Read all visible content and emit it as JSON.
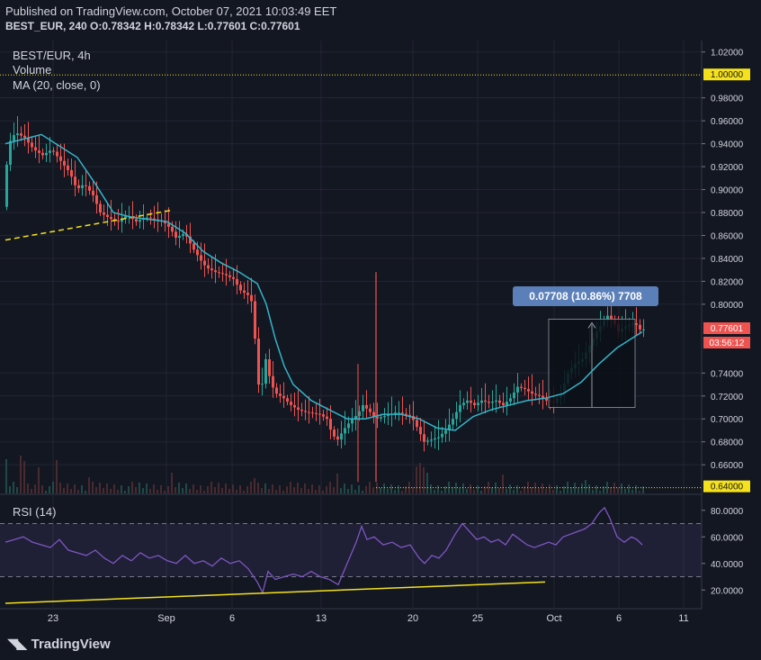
{
  "published": "Published on TradingView.com, October 07, 2021 10:03:49 EET",
  "ohlc_line": "BEST_EUR, 240 O:0.78342 H:0.78342 L:0.77601 C:0.77601",
  "legend": {
    "symbol": "BEST/EUR, 4h",
    "volume": "Volume",
    "ma": "MA (20, close, 0)",
    "rsi": "RSI (14)"
  },
  "measure": {
    "label": "0.07708 (10.86%) 7708"
  },
  "price_tags": {
    "hline_top": "1.00000",
    "hline_bottom": "0.64000",
    "last_price": "0.77601",
    "countdown": "03:56:12"
  },
  "brand": "TradingView",
  "colors": {
    "background": "#131722",
    "up": "#26a69a",
    "down": "#ef5350",
    "ma": "#33b5c9",
    "rsi": "#7e57c2",
    "hline": "#f5e11c",
    "measure": "#5b7fb8"
  },
  "chart_data": {
    "type": "candlestick",
    "y_axis": {
      "range": [
        0.635,
        1.03
      ],
      "ticks": [
        "1.02000",
        "0.98000",
        "0.96000",
        "0.94000",
        "0.92000",
        "0.90000",
        "0.88000",
        "0.86000",
        "0.84000",
        "0.82000",
        "0.80000",
        "0.74000",
        "0.72000",
        "0.70000",
        "0.68000",
        "0.66000"
      ]
    },
    "x_axis": {
      "ticks": [
        "23",
        "Sep",
        "6",
        "13",
        "20",
        "25",
        "Oct",
        "6",
        "11"
      ]
    },
    "rsi_axis": {
      "range": [
        10,
        90
      ],
      "ticks": [
        "80.0000",
        "60.0000",
        "40.0000",
        "20.0000"
      ],
      "bands": [
        70,
        30
      ]
    },
    "price_path": [
      [
        0,
        0.885
      ],
      [
        6,
        0.94
      ],
      [
        14,
        0.95
      ],
      [
        24,
        0.945
      ],
      [
        34,
        0.935
      ],
      [
        44,
        0.93
      ],
      [
        54,
        0.935
      ],
      [
        64,
        0.925
      ],
      [
        74,
        0.915
      ],
      [
        82,
        0.9
      ],
      [
        90,
        0.905
      ],
      [
        100,
        0.895
      ],
      [
        108,
        0.88
      ],
      [
        118,
        0.875
      ],
      [
        128,
        0.872
      ],
      [
        138,
        0.878
      ],
      [
        148,
        0.872
      ],
      [
        158,
        0.876
      ],
      [
        168,
        0.874
      ],
      [
        178,
        0.872
      ],
      [
        186,
        0.866
      ],
      [
        192,
        0.858
      ],
      [
        202,
        0.862
      ],
      [
        210,
        0.85
      ],
      [
        220,
        0.838
      ],
      [
        226,
        0.832
      ],
      [
        236,
        0.828
      ],
      [
        246,
        0.826
      ],
      [
        256,
        0.822
      ],
      [
        264,
        0.812
      ],
      [
        272,
        0.808
      ],
      [
        278,
        0.8
      ],
      [
        282,
        0.74
      ],
      [
        286,
        0.72
      ],
      [
        292,
        0.752
      ],
      [
        298,
        0.73
      ],
      [
        304,
        0.722
      ],
      [
        312,
        0.718
      ],
      [
        320,
        0.712
      ],
      [
        328,
        0.708
      ],
      [
        336,
        0.706
      ],
      [
        344,
        0.705
      ],
      [
        352,
        0.704
      ],
      [
        360,
        0.7
      ],
      [
        366,
        0.686
      ],
      [
        372,
        0.682
      ],
      [
        378,
        0.69
      ],
      [
        386,
        0.698
      ],
      [
        394,
        0.704
      ],
      [
        400,
        0.712
      ],
      [
        408,
        0.706
      ],
      [
        414,
        0.7
      ],
      [
        422,
        0.702
      ],
      [
        430,
        0.704
      ],
      [
        438,
        0.706
      ],
      [
        446,
        0.704
      ],
      [
        454,
        0.702
      ],
      [
        462,
        0.69
      ],
      [
        468,
        0.68
      ],
      [
        476,
        0.682
      ],
      [
        484,
        0.684
      ],
      [
        492,
        0.69
      ],
      [
        500,
        0.7
      ],
      [
        508,
        0.712
      ],
      [
        516,
        0.716
      ],
      [
        524,
        0.712
      ],
      [
        532,
        0.716
      ],
      [
        540,
        0.714
      ],
      [
        548,
        0.716
      ],
      [
        556,
        0.712
      ],
      [
        564,
        0.718
      ],
      [
        572,
        0.728
      ],
      [
        580,
        0.726
      ],
      [
        588,
        0.722
      ],
      [
        596,
        0.72
      ],
      [
        604,
        0.716
      ],
      [
        612,
        0.714
      ],
      [
        620,
        0.722
      ],
      [
        628,
        0.74
      ],
      [
        636,
        0.748
      ],
      [
        644,
        0.752
      ],
      [
        652,
        0.764
      ],
      [
        660,
        0.776
      ],
      [
        666,
        0.784
      ],
      [
        672,
        0.79
      ],
      [
        678,
        0.786
      ],
      [
        684,
        0.776
      ],
      [
        690,
        0.78
      ],
      [
        696,
        0.782
      ],
      [
        702,
        0.784
      ],
      [
        708,
        0.778
      ]
    ],
    "ma_path": [
      [
        0,
        0.94
      ],
      [
        40,
        0.948
      ],
      [
        80,
        0.928
      ],
      [
        100,
        0.905
      ],
      [
        120,
        0.88
      ],
      [
        140,
        0.876
      ],
      [
        160,
        0.874
      ],
      [
        180,
        0.872
      ],
      [
        200,
        0.862
      ],
      [
        220,
        0.846
      ],
      [
        240,
        0.836
      ],
      [
        260,
        0.828
      ],
      [
        280,
        0.818
      ],
      [
        290,
        0.8
      ],
      [
        300,
        0.77
      ],
      [
        310,
        0.746
      ],
      [
        320,
        0.73
      ],
      [
        340,
        0.716
      ],
      [
        360,
        0.708
      ],
      [
        380,
        0.7
      ],
      [
        400,
        0.7
      ],
      [
        420,
        0.704
      ],
      [
        440,
        0.704
      ],
      [
        460,
        0.7
      ],
      [
        480,
        0.692
      ],
      [
        500,
        0.69
      ],
      [
        520,
        0.702
      ],
      [
        540,
        0.708
      ],
      [
        560,
        0.712
      ],
      [
        580,
        0.716
      ],
      [
        600,
        0.718
      ],
      [
        620,
        0.722
      ],
      [
        640,
        0.732
      ],
      [
        660,
        0.748
      ],
      [
        680,
        0.762
      ],
      [
        700,
        0.772
      ],
      [
        708,
        0.776
      ]
    ],
    "rsi_path": [
      [
        0,
        56
      ],
      [
        10,
        58
      ],
      [
        20,
        60
      ],
      [
        30,
        56
      ],
      [
        40,
        54
      ],
      [
        50,
        52
      ],
      [
        60,
        58
      ],
      [
        70,
        50
      ],
      [
        80,
        48
      ],
      [
        90,
        46
      ],
      [
        100,
        50
      ],
      [
        110,
        44
      ],
      [
        120,
        40
      ],
      [
        130,
        46
      ],
      [
        140,
        42
      ],
      [
        150,
        48
      ],
      [
        160,
        44
      ],
      [
        170,
        46
      ],
      [
        180,
        42
      ],
      [
        190,
        40
      ],
      [
        200,
        46
      ],
      [
        210,
        40
      ],
      [
        220,
        42
      ],
      [
        230,
        38
      ],
      [
        240,
        44
      ],
      [
        250,
        40
      ],
      [
        260,
        42
      ],
      [
        270,
        36
      ],
      [
        280,
        26
      ],
      [
        286,
        18
      ],
      [
        292,
        34
      ],
      [
        300,
        28
      ],
      [
        310,
        30
      ],
      [
        320,
        32
      ],
      [
        330,
        30
      ],
      [
        340,
        34
      ],
      [
        350,
        30
      ],
      [
        360,
        28
      ],
      [
        370,
        24
      ],
      [
        380,
        40
      ],
      [
        390,
        56
      ],
      [
        396,
        68
      ],
      [
        402,
        58
      ],
      [
        410,
        60
      ],
      [
        420,
        54
      ],
      [
        430,
        56
      ],
      [
        440,
        52
      ],
      [
        450,
        54
      ],
      [
        460,
        44
      ],
      [
        466,
        40
      ],
      [
        474,
        46
      ],
      [
        482,
        44
      ],
      [
        490,
        50
      ],
      [
        500,
        62
      ],
      [
        508,
        70
      ],
      [
        516,
        64
      ],
      [
        524,
        58
      ],
      [
        532,
        60
      ],
      [
        540,
        56
      ],
      [
        548,
        58
      ],
      [
        556,
        54
      ],
      [
        564,
        62
      ],
      [
        572,
        58
      ],
      [
        580,
        54
      ],
      [
        588,
        52
      ],
      [
        596,
        54
      ],
      [
        604,
        56
      ],
      [
        612,
        54
      ],
      [
        620,
        60
      ],
      [
        628,
        62
      ],
      [
        636,
        64
      ],
      [
        644,
        66
      ],
      [
        652,
        70
      ],
      [
        660,
        78
      ],
      [
        666,
        82
      ],
      [
        672,
        74
      ],
      [
        680,
        60
      ],
      [
        688,
        56
      ],
      [
        696,
        60
      ],
      [
        702,
        58
      ],
      [
        708,
        54
      ]
    ],
    "support_line": [
      [
        0,
        0.856
      ],
      [
        185,
        0.882
      ]
    ],
    "rsi_trend_line": [
      [
        0,
        10
      ],
      [
        600,
        26
      ]
    ],
    "horizontal_lines": [
      1.0,
      0.64
    ],
    "spike": {
      "x": 412,
      "high": 0.828,
      "low": 0.645
    },
    "measure_box": {
      "x0": 604,
      "x1": 700,
      "y0": 0.71,
      "y1": 0.787
    }
  }
}
